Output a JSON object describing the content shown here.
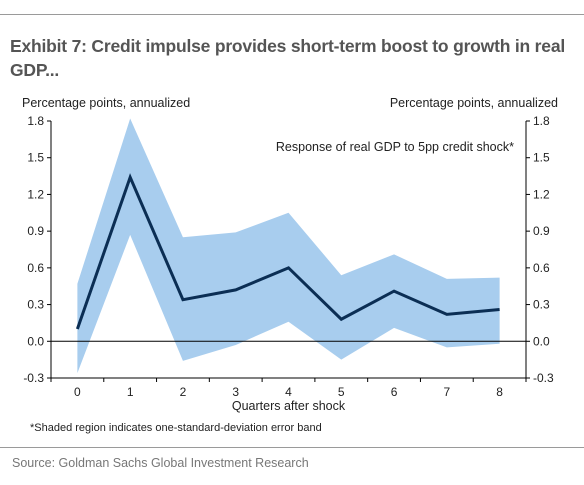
{
  "header": {
    "title": "Exhibit 7: Credit impulse provides short-term boost to growth in real GDP...",
    "source": "Source: Goldman Sachs Global Investment Research"
  },
  "chart_data": {
    "type": "line",
    "y_unit_left": "Percentage points, annualized",
    "y_unit_right": "Percentage points, annualized",
    "xlabel": "Quarters after shock",
    "annotation": "Response of real GDP to 5pp credit shock*",
    "footnote": "*Shaded region indicates one-standard-deviation error band",
    "x": [
      0,
      1,
      2,
      3,
      4,
      5,
      6,
      7,
      8
    ],
    "x_tick_labels": [
      "0",
      "1",
      "2",
      "3",
      "4",
      "5",
      "6",
      "7",
      "8"
    ],
    "y_ticks": [
      -0.3,
      0.0,
      0.3,
      0.6,
      0.9,
      1.2,
      1.5,
      1.8
    ],
    "y_tick_labels": [
      "-0.3",
      "0.0",
      "0.3",
      "0.6",
      "0.9",
      "1.2",
      "1.5",
      "1.8"
    ],
    "ylim": [
      -0.3,
      1.8
    ],
    "xlim": [
      -0.5,
      8.5
    ],
    "series": [
      {
        "values": [
          0.1,
          1.34,
          0.34,
          0.42,
          0.6,
          0.18,
          0.41,
          0.22,
          0.26
        ],
        "upper": [
          0.47,
          1.82,
          0.85,
          0.89,
          1.05,
          0.54,
          0.71,
          0.51,
          0.52
        ],
        "lower": [
          -0.26,
          0.87,
          -0.16,
          -0.03,
          0.16,
          -0.15,
          0.11,
          -0.05,
          -0.02
        ],
        "color": "#0b2e54",
        "band_color": "#a8cdee"
      }
    ],
    "zero_line": true,
    "grid": false,
    "legend": "none"
  }
}
